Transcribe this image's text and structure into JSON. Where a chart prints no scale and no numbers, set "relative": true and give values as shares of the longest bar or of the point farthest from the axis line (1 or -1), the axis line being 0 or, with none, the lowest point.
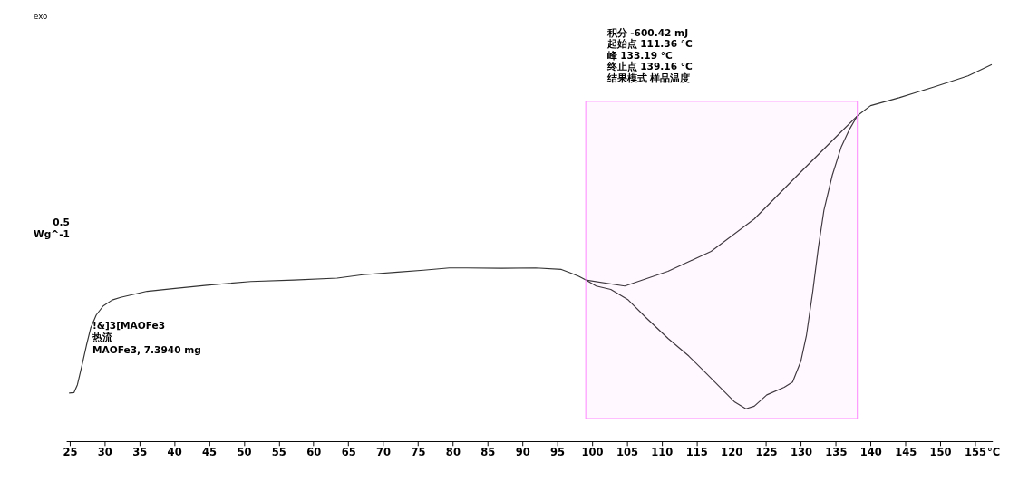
{
  "chart_data": {
    "type": "line",
    "title": "exo",
    "xlabel": "°C",
    "ylabel": "0.5 Wg^-1",
    "relative": true,
    "xlim": [
      24.5,
      157.5
    ],
    "xticks": [
      25,
      30,
      35,
      40,
      45,
      50,
      55,
      60,
      65,
      70,
      75,
      80,
      85,
      90,
      95,
      100,
      105,
      110,
      115,
      120,
      125,
      130,
      135,
      140,
      145,
      150,
      155
    ],
    "grid": false,
    "legend": false,
    "marker": "none",
    "line_style": "solid",
    "series": [
      {
        "color": "#333333",
        "x": [
          24.9,
          25.6,
          26.1,
          26.7,
          27.4,
          28.0,
          28.8,
          29.8,
          31.1,
          32.3,
          36.1,
          39.8,
          44.7,
          51.0,
          57.2,
          63.4,
          67.1,
          72.1,
          75.8,
          79.5,
          82.0,
          87.0,
          91.9,
          95.6,
          96.9,
          98.1,
          99.1,
          100.6,
          102.7,
          105.2,
          107.7,
          110.9,
          113.9,
          116.4,
          118.4,
          120.5,
          122.1,
          123.3,
          125.1,
          127.6,
          128.8,
          130.0,
          130.8,
          131.7,
          132.5,
          133.3,
          134.5,
          135.8,
          137.0,
          138.1,
          140.0,
          144.1,
          149.0,
          154.0,
          157.4
        ],
        "values": [
          0.128,
          0.129,
          0.15,
          0.197,
          0.255,
          0.3,
          0.335,
          0.359,
          0.375,
          0.382,
          0.398,
          0.405,
          0.414,
          0.424,
          0.428,
          0.433,
          0.442,
          0.449,
          0.454,
          0.46,
          0.46,
          0.459,
          0.46,
          0.456,
          0.447,
          0.438,
          0.428,
          0.412,
          0.403,
          0.375,
          0.329,
          0.273,
          0.226,
          0.18,
          0.143,
          0.104,
          0.086,
          0.093,
          0.123,
          0.143,
          0.157,
          0.213,
          0.282,
          0.398,
          0.514,
          0.613,
          0.706,
          0.782,
          0.829,
          0.864,
          0.891,
          0.912,
          0.94,
          0.97,
          1.0
        ]
      },
      {
        "color": "#333333",
        "x": [
          99.1,
          104.7,
          110.9,
          117.1,
          123.3,
          129.5,
          135.8,
          138.1
        ],
        "values": [
          0.428,
          0.412,
          0.451,
          0.504,
          0.59,
          0.706,
          0.822,
          0.864
        ]
      }
    ],
    "bands": [
      {
        "axis": "x",
        "from": 99.1,
        "to": 138.1,
        "color": "#ff80ff"
      }
    ],
    "annotations": [
      "积分  -600.42 mJ",
      "起始点  111.36 °C",
      "峰  133.19 °C",
      "终止点  139.16 °C",
      "结果模式  样品温度",
      "!&]3[MAOFe3",
      "热流",
      "MAOFe3, 7.3940 mg"
    ]
  }
}
